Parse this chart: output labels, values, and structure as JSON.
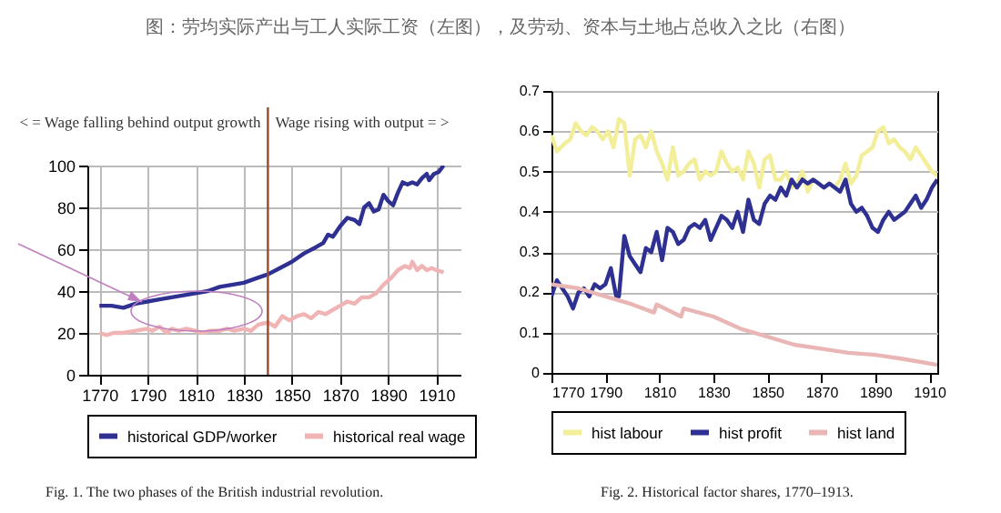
{
  "chart_data": [
    {
      "type": "line",
      "title": "图：劳均实际产出与工人实际工资（左图），及劳动、资本与土地占总收入之比（右图）",
      "xlim": [
        1765,
        1920
      ],
      "xticks": [
        1770,
        1790,
        1810,
        1830,
        1850,
        1870,
        1890,
        1910
      ],
      "ylim": [
        0,
        100
      ],
      "yticks": [
        0,
        20,
        40,
        60,
        80,
        100
      ],
      "grid": true,
      "legend": "bottom",
      "ref_lines": [
        {
          "axis": "x",
          "value": 1840,
          "color": "#9b4a2c"
        }
      ],
      "annotations": [
        "< = Wage falling behind output growth",
        "Wage rising with output = >",
        "Fig. 1. The two phases of the British industrial revolution."
      ],
      "series": [
        {
          "name": "historical GDP/worker",
          "color": "#2e3192",
          "x": [
            1770,
            1775,
            1780,
            1785,
            1790,
            1795,
            1800,
            1805,
            1810,
            1815,
            1820,
            1825,
            1830,
            1835,
            1840,
            1845,
            1850,
            1855,
            1860,
            1863,
            1865,
            1867,
            1870,
            1873,
            1876,
            1878,
            1880,
            1882,
            1884,
            1886,
            1888,
            1890,
            1892,
            1894,
            1896,
            1898,
            1900,
            1902,
            1904,
            1906,
            1907,
            1909,
            1911,
            1913
          ],
          "values": [
            33,
            33,
            32,
            34,
            35,
            36,
            37,
            38,
            39,
            40,
            42,
            43,
            44,
            46,
            48,
            51,
            54,
            58,
            61,
            63,
            67,
            66,
            71,
            75,
            74,
            72,
            80,
            82,
            78,
            79,
            86,
            83,
            81,
            87,
            92,
            91,
            92,
            91,
            94,
            96,
            93,
            96,
            97,
            100
          ]
        },
        {
          "name": "historical real wage",
          "color": "#f0b4b4",
          "x": [
            1770,
            1773,
            1776,
            1780,
            1785,
            1790,
            1792,
            1795,
            1798,
            1800,
            1803,
            1806,
            1810,
            1813,
            1816,
            1820,
            1823,
            1826,
            1830,
            1833,
            1836,
            1840,
            1843,
            1846,
            1849,
            1852,
            1855,
            1858,
            1861,
            1864,
            1867,
            1870,
            1873,
            1876,
            1879,
            1882,
            1885,
            1888,
            1891,
            1894,
            1897,
            1899,
            1900,
            1902,
            1904,
            1906,
            1908,
            1910,
            1913
          ],
          "values": [
            20,
            19,
            20,
            20,
            21,
            22,
            21,
            23,
            20,
            22,
            21,
            22,
            21,
            20,
            21,
            21,
            22,
            21,
            22,
            21,
            24,
            25,
            23,
            28,
            26,
            28,
            29,
            27,
            30,
            29,
            31,
            33,
            35,
            34,
            37,
            37,
            39,
            43,
            46,
            50,
            52,
            51,
            54,
            50,
            52,
            50,
            51,
            50,
            49
          ]
        }
      ]
    },
    {
      "type": "line",
      "xlim": [
        1770,
        1913
      ],
      "xticks": [
        1770,
        1790,
        1810,
        1830,
        1850,
        1870,
        1890,
        1910
      ],
      "ylim": [
        0,
        0.7
      ],
      "yticks": [
        0,
        0.1,
        0.2,
        0.3,
        0.4,
        0.5,
        0.6,
        0.7
      ],
      "grid": "y",
      "legend": "bottom",
      "annotations": [
        "Fig. 2. Historical factor shares, 1770–1913."
      ],
      "series": [
        {
          "name": "hist labour",
          "color": "#f2ee99",
          "x": [
            1770,
            1772,
            1775,
            1777,
            1779,
            1781,
            1783,
            1785,
            1787,
            1789,
            1791,
            1793,
            1795,
            1797,
            1799,
            1801,
            1803,
            1805,
            1807,
            1809,
            1811,
            1813,
            1815,
            1817,
            1819,
            1821,
            1823,
            1825,
            1827,
            1829,
            1831,
            1833,
            1835,
            1837,
            1839,
            1841,
            1843,
            1845,
            1847,
            1849,
            1851,
            1853,
            1855,
            1857,
            1859,
            1861,
            1863,
            1865,
            1867,
            1869,
            1871,
            1873,
            1875,
            1877,
            1879,
            1881,
            1883,
            1885,
            1887,
            1889,
            1891,
            1893,
            1895,
            1897,
            1899,
            1901,
            1903,
            1905,
            1907,
            1909,
            1911,
            1913
          ],
          "values": [
            0.59,
            0.55,
            0.57,
            0.58,
            0.62,
            0.6,
            0.59,
            0.61,
            0.6,
            0.58,
            0.6,
            0.56,
            0.63,
            0.62,
            0.49,
            0.58,
            0.59,
            0.56,
            0.6,
            0.55,
            0.52,
            0.48,
            0.56,
            0.49,
            0.5,
            0.52,
            0.53,
            0.48,
            0.5,
            0.49,
            0.5,
            0.55,
            0.52,
            0.5,
            0.51,
            0.48,
            0.55,
            0.52,
            0.46,
            0.53,
            0.54,
            0.48,
            0.48,
            0.5,
            0.46,
            0.47,
            0.5,
            0.45,
            0.48,
            0.47,
            0.46,
            0.47,
            0.46,
            0.48,
            0.52,
            0.47,
            0.49,
            0.54,
            0.55,
            0.56,
            0.6,
            0.61,
            0.57,
            0.58,
            0.56,
            0.55,
            0.53,
            0.56,
            0.54,
            0.52,
            0.5,
            0.49
          ]
        },
        {
          "name": "hist profit",
          "color": "#2e3192",
          "x": [
            1770,
            1772,
            1774,
            1776,
            1778,
            1780,
            1782,
            1784,
            1786,
            1788,
            1790,
            1792,
            1794,
            1795,
            1797,
            1799,
            1801,
            1803,
            1805,
            1807,
            1809,
            1811,
            1813,
            1815,
            1817,
            1819,
            1821,
            1823,
            1825,
            1827,
            1829,
            1831,
            1833,
            1835,
            1837,
            1839,
            1841,
            1843,
            1845,
            1847,
            1849,
            1851,
            1853,
            1855,
            1857,
            1859,
            1861,
            1863,
            1865,
            1867,
            1869,
            1871,
            1873,
            1875,
            1877,
            1879,
            1881,
            1883,
            1885,
            1887,
            1889,
            1891,
            1893,
            1895,
            1897,
            1899,
            1901,
            1903,
            1905,
            1907,
            1909,
            1911,
            1913
          ],
          "values": [
            0.19,
            0.23,
            0.21,
            0.19,
            0.16,
            0.2,
            0.21,
            0.19,
            0.22,
            0.21,
            0.22,
            0.26,
            0.19,
            0.19,
            0.34,
            0.29,
            0.27,
            0.25,
            0.31,
            0.3,
            0.35,
            0.28,
            0.36,
            0.35,
            0.32,
            0.33,
            0.36,
            0.37,
            0.36,
            0.38,
            0.33,
            0.36,
            0.39,
            0.38,
            0.36,
            0.4,
            0.35,
            0.43,
            0.38,
            0.37,
            0.42,
            0.44,
            0.43,
            0.46,
            0.44,
            0.48,
            0.46,
            0.48,
            0.47,
            0.48,
            0.47,
            0.46,
            0.47,
            0.46,
            0.45,
            0.48,
            0.42,
            0.4,
            0.41,
            0.39,
            0.36,
            0.35,
            0.38,
            0.4,
            0.38,
            0.39,
            0.4,
            0.42,
            0.44,
            0.41,
            0.43,
            0.46,
            0.48
          ]
        },
        {
          "name": "hist land",
          "color": "#eab5b5",
          "x": [
            1770,
            1780,
            1790,
            1800,
            1808,
            1809,
            1818,
            1819,
            1830,
            1840,
            1850,
            1860,
            1870,
            1880,
            1890,
            1900,
            1913
          ],
          "values": [
            0.22,
            0.21,
            0.19,
            0.17,
            0.15,
            0.17,
            0.14,
            0.16,
            0.14,
            0.11,
            0.09,
            0.07,
            0.06,
            0.05,
            0.045,
            0.035,
            0.02
          ]
        }
      ]
    }
  ]
}
